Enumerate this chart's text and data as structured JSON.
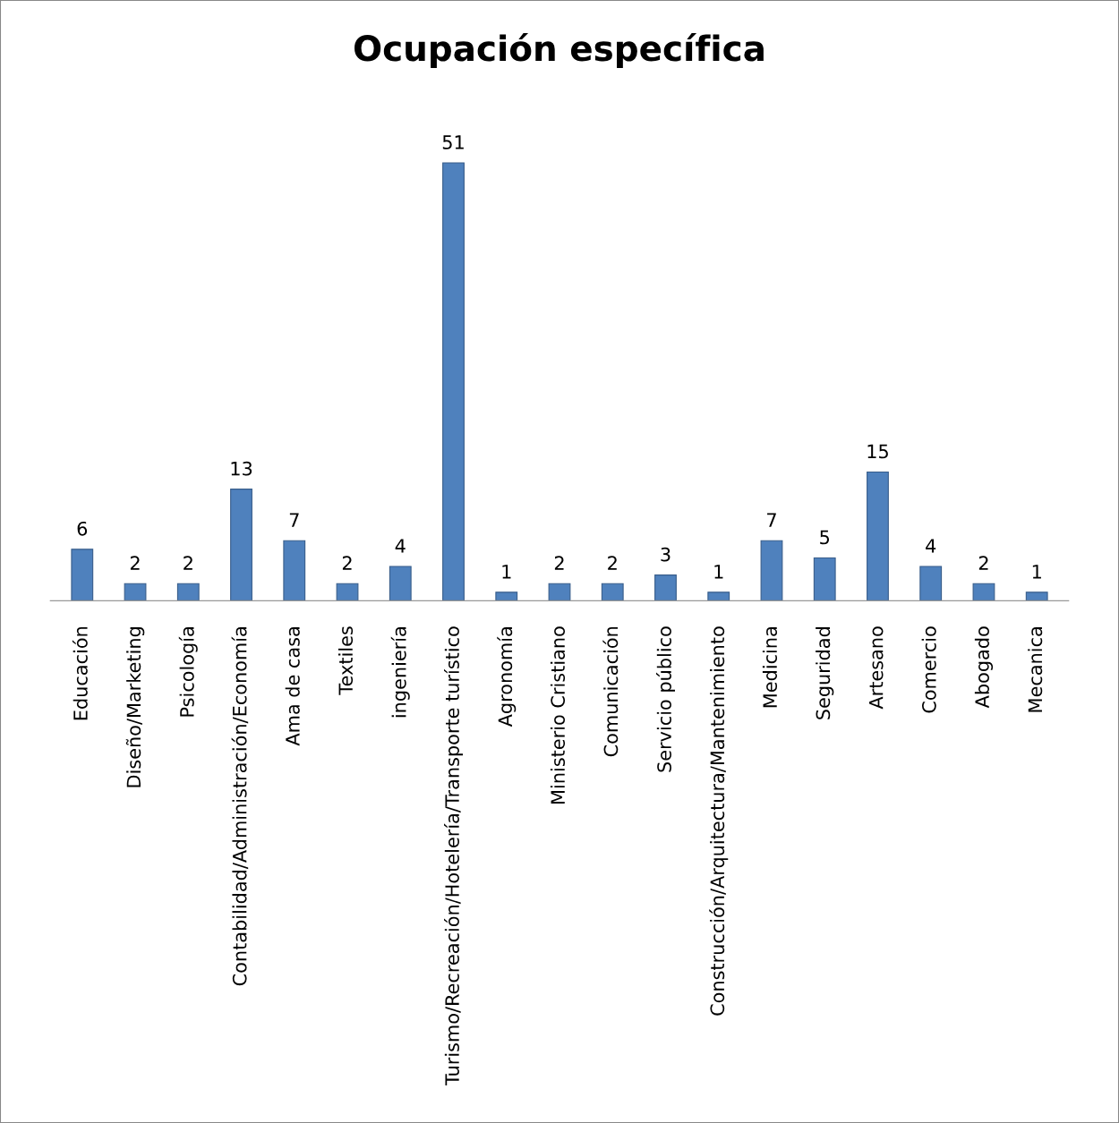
{
  "chart_data": {
    "type": "bar",
    "title": "Ocupación específica",
    "categories": [
      "Educación",
      "Diseño/Marketing",
      "Psicología",
      "Contabilidad/Administración/Economía",
      "Ama de casa",
      "Textiles",
      "ingeniería",
      "Turismo/Recreación/Hotelería/Transporte turístico",
      "Agronomía",
      "Ministerio Cristiano",
      "Comunicación",
      "Servicio público",
      "Construcción/Arquitectura/Mantenimiento",
      "Medicina",
      "Seguridad",
      "Artesano",
      "Comercio",
      "Abogado",
      "Mecanica"
    ],
    "values": [
      6,
      2,
      2,
      13,
      7,
      2,
      4,
      51,
      1,
      2,
      2,
      3,
      1,
      7,
      5,
      15,
      4,
      2,
      1
    ],
    "color": "#4f81bd",
    "data_labels": true,
    "grid": false,
    "tick_labels": "x"
  }
}
